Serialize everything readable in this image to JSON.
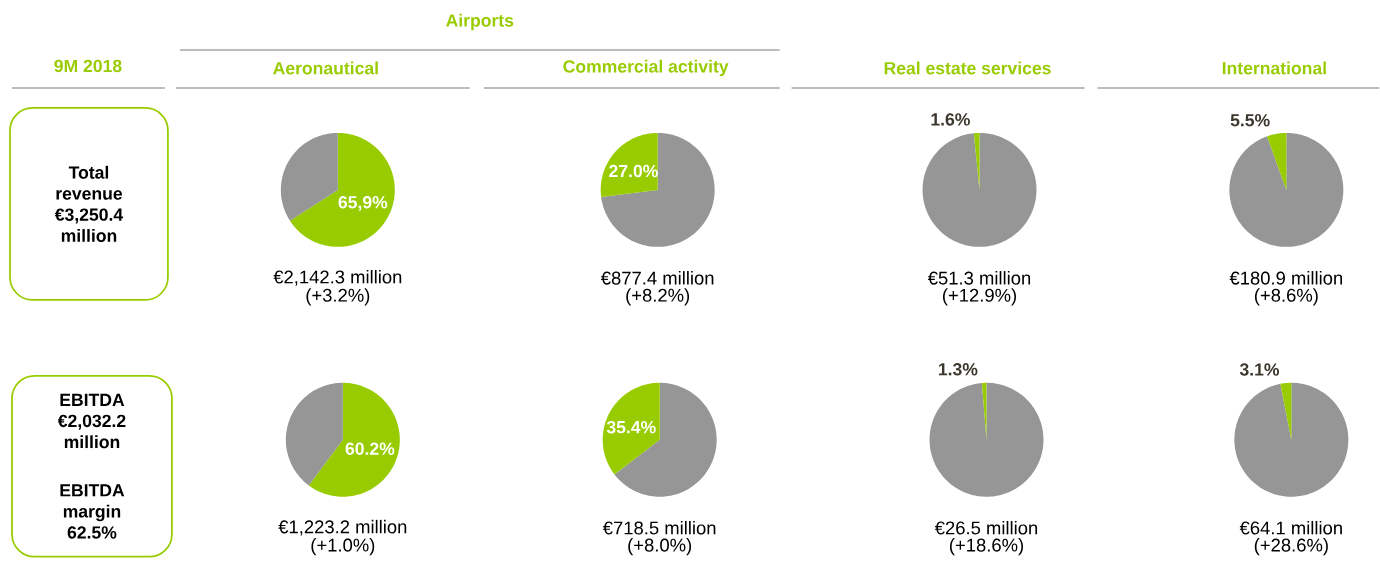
{
  "chart_data": [
    {
      "type": "other",
      "title": "9M 2018",
      "annotations": [
        "Total revenue €3,250.4 million"
      ]
    },
    {
      "type": "other",
      "annotations": [
        "EBITDA €2,032.2 million",
        "EBITDA margin 62.5%"
      ]
    },
    {
      "type": "other",
      "title": "Airports"
    },
    {
      "type": "pie",
      "title": "Aeronautical",
      "categories": [
        null,
        null
      ],
      "values": [
        65.9,
        34.1
      ],
      "colors": [
        "#99cc00",
        "#969696"
      ],
      "value_labels": [
        "65,9%",
        null
      ],
      "annotations": [
        "€2,142.3 million",
        "(+3.2%)"
      ]
    },
    {
      "type": "pie",
      "title": "Commercial activity",
      "categories": [
        null,
        null
      ],
      "values": [
        73.0,
        27.0
      ],
      "colors": [
        "#969696",
        "#99cc00"
      ],
      "value_labels": [
        null,
        "27.0%"
      ],
      "annotations": [
        "€877.4 million",
        "(+8.2%)"
      ]
    },
    {
      "type": "pie",
      "title": "Real estate services",
      "categories": [
        null,
        null
      ],
      "values": [
        98.4,
        1.6
      ],
      "colors": [
        "#969696",
        "#99cc00"
      ],
      "value_labels": [
        null,
        "1.6%"
      ],
      "annotations": [
        "€51.3 million",
        "(+12.9%)"
      ]
    },
    {
      "type": "pie",
      "title": "International",
      "categories": [
        null,
        null
      ],
      "values": [
        94.5,
        5.5
      ],
      "colors": [
        "#969696",
        "#99cc00"
      ],
      "value_labels": [
        null,
        "5.5%"
      ],
      "annotations": [
        "€180.9 million",
        "(+8.6%)"
      ]
    },
    {
      "type": "pie",
      "categories": [
        null,
        null
      ],
      "values": [
        60.2,
        39.8
      ],
      "colors": [
        "#99cc00",
        "#969696"
      ],
      "value_labels": [
        "60.2%",
        null
      ],
      "annotations": [
        "€1,223.2 million",
        "(+1.0%)"
      ]
    },
    {
      "type": "pie",
      "categories": [
        null,
        null
      ],
      "values": [
        64.6,
        35.4
      ],
      "colors": [
        "#969696",
        "#99cc00"
      ],
      "value_labels": [
        null,
        "35.4%"
      ],
      "annotations": [
        "€718.5 million",
        "(+8.0%)"
      ]
    },
    {
      "type": "pie",
      "categories": [
        null,
        null
      ],
      "values": [
        98.7,
        1.3
      ],
      "colors": [
        "#969696",
        "#99cc00"
      ],
      "value_labels": [
        null,
        "1.3%"
      ],
      "annotations": [
        "€26.5 million",
        "(+18.6%)"
      ]
    },
    {
      "type": "pie",
      "categories": [
        null,
        null
      ],
      "values": [
        96.9,
        3.1
      ],
      "colors": [
        "#969696",
        "#99cc00"
      ],
      "value_labels": [
        null,
        "3.1%"
      ],
      "annotations": [
        "€64.1 million",
        "(+28.6%)"
      ]
    }
  ]
}
